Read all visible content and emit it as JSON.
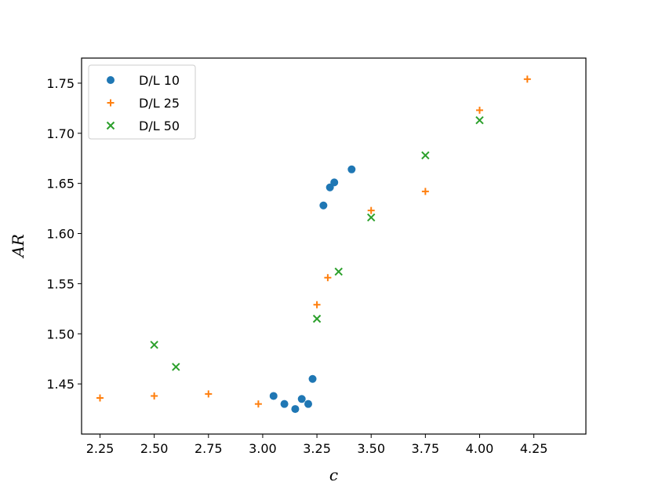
{
  "chart_data": {
    "type": "scatter",
    "title": "",
    "xlabel": "c",
    "ylabel": "AR",
    "xlim": [
      2.165,
      4.49
    ],
    "ylim": [
      1.4,
      1.775
    ],
    "xticks": [
      2.25,
      2.5,
      2.75,
      3.0,
      3.25,
      3.5,
      3.75,
      4.0,
      4.25
    ],
    "xtick_labels": [
      "2.25",
      "2.50",
      "2.75",
      "3.00",
      "3.25",
      "3.50",
      "3.75",
      "4.00",
      "4.25"
    ],
    "yticks": [
      1.45,
      1.5,
      1.55,
      1.6,
      1.65,
      1.7,
      1.75
    ],
    "ytick_labels": [
      "1.45",
      "1.50",
      "1.55",
      "1.60",
      "1.65",
      "1.70",
      "1.75"
    ],
    "grid": false,
    "legend_position": "top-left",
    "series": [
      {
        "name": "D/L 10",
        "marker": "circle",
        "color": "#1f77b4",
        "points": [
          [
            3.05,
            1.438
          ],
          [
            3.1,
            1.43
          ],
          [
            3.15,
            1.425
          ],
          [
            3.18,
            1.435
          ],
          [
            3.21,
            1.43
          ],
          [
            3.23,
            1.455
          ],
          [
            3.28,
            1.628
          ],
          [
            3.31,
            1.646
          ],
          [
            3.33,
            1.651
          ],
          [
            3.41,
            1.664
          ]
        ]
      },
      {
        "name": "D/L 25",
        "marker": "plus",
        "color": "#ff7f0e",
        "points": [
          [
            2.25,
            1.436
          ],
          [
            2.5,
            1.438
          ],
          [
            2.75,
            1.44
          ],
          [
            2.98,
            1.43
          ],
          [
            3.25,
            1.529
          ],
          [
            3.3,
            1.556
          ],
          [
            3.5,
            1.623
          ],
          [
            3.75,
            1.642
          ],
          [
            4.0,
            1.723
          ],
          [
            4.22,
            1.754
          ]
        ]
      },
      {
        "name": "D/L 50",
        "marker": "x",
        "color": "#2ca02c",
        "points": [
          [
            2.5,
            1.489
          ],
          [
            2.6,
            1.467
          ],
          [
            3.25,
            1.515
          ],
          [
            3.35,
            1.562
          ],
          [
            3.5,
            1.616
          ],
          [
            3.75,
            1.678
          ],
          [
            4.0,
            1.713
          ]
        ]
      }
    ]
  }
}
